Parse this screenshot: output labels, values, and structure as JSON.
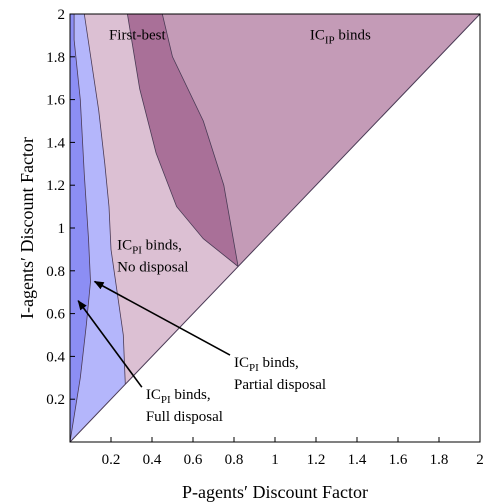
{
  "chart_data": {
    "type": "area",
    "xlabel": "P-agents′ Discount Factor",
    "ylabel": "I-agents′ Discount Factor",
    "xlim": [
      0,
      2
    ],
    "ylim": [
      0,
      2
    ],
    "xticks": [
      "0.2",
      "0.4",
      "0.6",
      "0.8",
      "1",
      "1.2",
      "1.4",
      "1.6",
      "1.8",
      "2"
    ],
    "yticks": [
      "0.2",
      "0.4",
      "0.6",
      "0.8",
      "1",
      "1.2",
      "1.4",
      "1.6",
      "1.8",
      "2"
    ],
    "grid": false,
    "boundaries": {
      "diagonal": [
        [
          0,
          0
        ],
        [
          2,
          2
        ]
      ],
      "full_partial": [
        [
          0,
          0
        ],
        [
          0.05,
          0.3
        ],
        [
          0.08,
          0.55
        ],
        [
          0.1,
          0.75
        ],
        [
          0.09,
          0.95
        ],
        [
          0.07,
          1.25
        ],
        [
          0.05,
          1.6
        ],
        [
          0.02,
          1.88
        ],
        [
          0.02,
          2.0
        ]
      ],
      "partial_nodisposal": [
        [
          0.27,
          0.27
        ],
        [
          0.26,
          0.5
        ],
        [
          0.2,
          0.9
        ],
        [
          0.19,
          1.1
        ],
        [
          0.17,
          1.3
        ],
        [
          0.14,
          1.55
        ],
        [
          0.07,
          2.0
        ]
      ],
      "first_best_lower": [
        [
          0.82,
          0.82
        ],
        [
          0.65,
          0.95
        ],
        [
          0.52,
          1.1
        ],
        [
          0.42,
          1.35
        ],
        [
          0.34,
          1.65
        ],
        [
          0.28,
          2.0
        ]
      ],
      "first_best_upper": [
        [
          0.82,
          0.82
        ],
        [
          0.75,
          1.2
        ],
        [
          0.65,
          1.5
        ],
        [
          0.5,
          1.8
        ],
        [
          0.45,
          2.0
        ]
      ]
    },
    "regions": [
      {
        "name": "IC_PI binds, Full disposal",
        "color": "#8c8ef4"
      },
      {
        "name": "IC_PI binds, Partial disposal",
        "color": "#b4b6fb"
      },
      {
        "name": "IC_PI binds, No disposal",
        "color": "#dcc0d3"
      },
      {
        "name": "First-best",
        "color": "#a97098"
      },
      {
        "name": "IC_IP binds",
        "color": "#c49bb7"
      }
    ],
    "annotations": [
      {
        "text_main": "IC",
        "text_sub": "IP",
        "text_rest": " binds",
        "at": [
          1.17,
          1.88
        ]
      },
      {
        "text": "First-best",
        "at": [
          0.19,
          1.88
        ]
      },
      {
        "text_main": "IC",
        "text_sub": "PI",
        "text_rest": " binds,",
        "text_line2": "No disposal",
        "at": [
          0.23,
          0.9
        ]
      },
      {
        "text_main": "IC",
        "text_sub": "PI",
        "text_rest": " binds,",
        "text_line2": "Partial disposal",
        "at": [
          0.8,
          0.35
        ],
        "arrow_to": [
          0.12,
          0.75
        ]
      },
      {
        "text_main": "IC",
        "text_sub": "PI",
        "text_rest": " binds,",
        "text_line2": "Full disposal",
        "at": [
          0.37,
          0.2
        ],
        "arrow_to": [
          0.04,
          0.66
        ]
      }
    ]
  }
}
